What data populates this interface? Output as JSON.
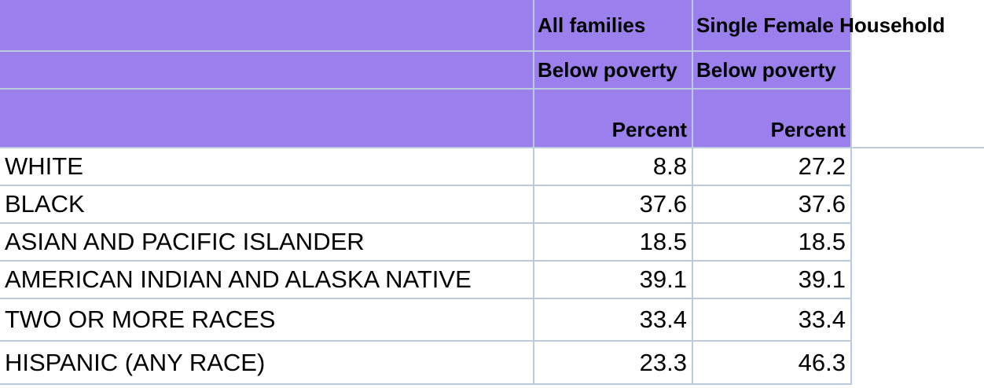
{
  "table": {
    "columns": [
      {
        "group": "All families",
        "measure": "Below poverty",
        "unit": "Percent"
      },
      {
        "group": "Single Female Household",
        "measure": "Below poverty",
        "unit": "Percent"
      }
    ],
    "rows": [
      {
        "label": "WHITE",
        "values": [
          8.8,
          27.2
        ]
      },
      {
        "label": "BLACK",
        "values": [
          37.6,
          37.6
        ]
      },
      {
        "label": "ASIAN AND PACIFIC ISLANDER",
        "values": [
          18.5,
          18.5
        ]
      },
      {
        "label": "AMERICAN INDIAN AND ALASKA NATIVE",
        "values": [
          39.1,
          39.1
        ]
      },
      {
        "label": "TWO OR MORE RACES",
        "values": [
          33.4,
          33.4
        ]
      },
      {
        "label": "HISPANIC (ANY RACE)",
        "values": [
          23.3,
          46.3
        ]
      }
    ]
  }
}
